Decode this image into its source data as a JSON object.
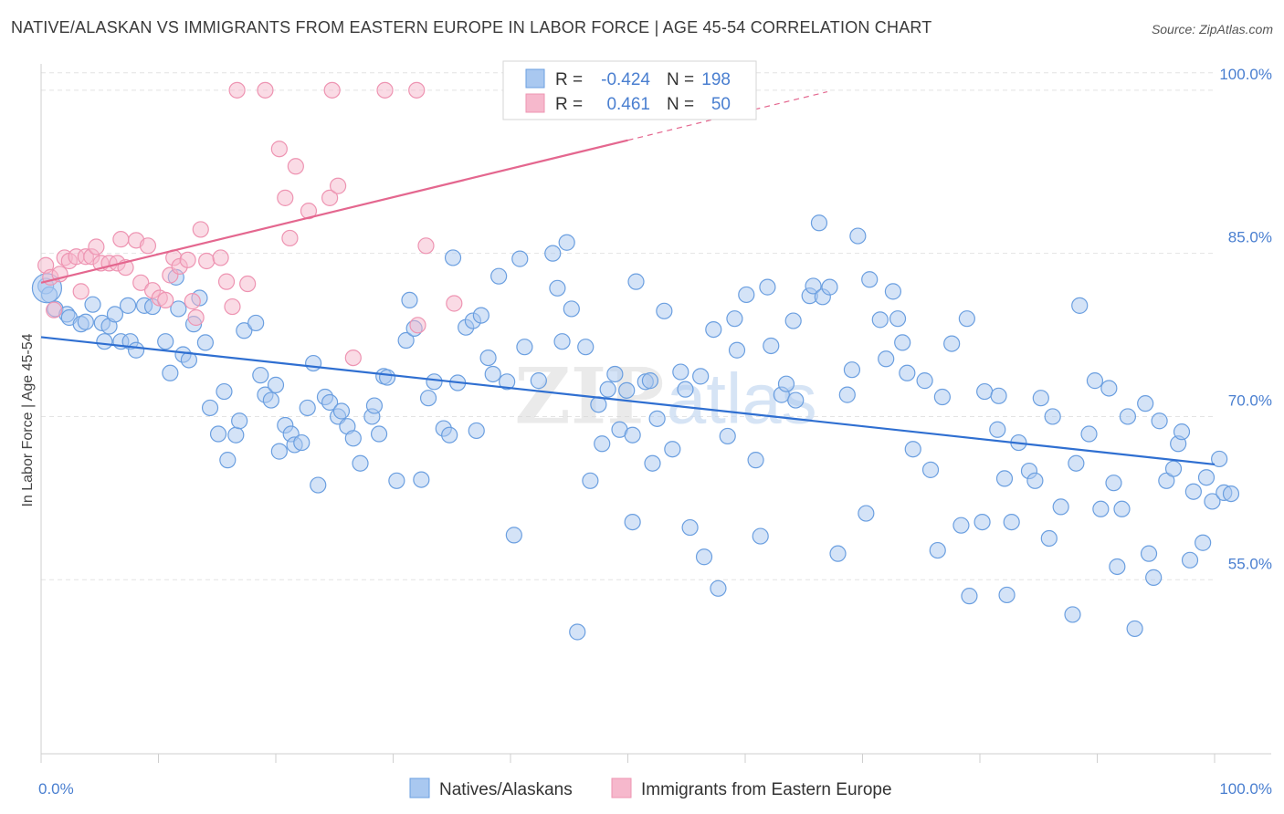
{
  "title": "NATIVE/ALASKAN VS IMMIGRANTS FROM EASTERN EUROPE IN LABOR FORCE | AGE 45-54 CORRELATION CHART",
  "source": "Source: ZipAtlas.com",
  "watermark": {
    "zip": "ZIP",
    "atlas": "atlas"
  },
  "colors": {
    "blue_fill": "#a9c8f0",
    "blue_stroke": "#6b9fe0",
    "blue_line": "#2f6fd1",
    "pink_fill": "#f6b8cc",
    "pink_stroke": "#ee94b2",
    "pink_line": "#e4678f",
    "label_blue": "#4a7fd0",
    "grid": "#e3e3e3"
  },
  "stats_legend": [
    {
      "r_label": "R =",
      "r_value": "-0.424",
      "n_label": "N =",
      "n_value": "198"
    },
    {
      "r_label": "R =",
      "r_value": "0.461",
      "n_label": "N =",
      "n_value": "50"
    }
  ],
  "chart_data": {
    "type": "scatter",
    "title": "NATIVE/ALASKAN VS IMMIGRANTS FROM EASTERN EUROPE IN LABOR FORCE | AGE 45-54 CORRELATION CHART",
    "xlabel": "",
    "ylabel": "In Labor Force | Age 45-54",
    "xlim": [
      0,
      100
    ],
    "ylim": [
      39,
      102
    ],
    "x_tick_labels": [
      "0.0%",
      "100.0%"
    ],
    "y_ticks": [
      55,
      70,
      85,
      100
    ],
    "y_tick_labels": [
      "55.0%",
      "70.0%",
      "85.0%",
      "100.0%"
    ],
    "grid": true,
    "legend_position": "bottom-center",
    "series": [
      {
        "name": "Natives/Alaskans",
        "color": "#6b9fe0",
        "trend": {
          "x": [
            0,
            100
          ],
          "y": [
            77.3,
            65.6
          ]
        },
        "points": [
          [
            0.4,
            82
          ],
          [
            0.7,
            81.2
          ],
          [
            1.2,
            79.9
          ],
          [
            2.2,
            79.4
          ],
          [
            2.4,
            79.1
          ],
          [
            3.4,
            78.5
          ],
          [
            3.8,
            78.7
          ],
          [
            4.4,
            80.3
          ],
          [
            5.2,
            78.6
          ],
          [
            5.8,
            78.3
          ],
          [
            6.3,
            79.4
          ],
          [
            5.4,
            76.9
          ],
          [
            6.8,
            76.9
          ],
          [
            7.6,
            76.9
          ],
          [
            8.1,
            76.1
          ],
          [
            7.4,
            80.2
          ],
          [
            8.8,
            80.2
          ],
          [
            9.5,
            80.1
          ],
          [
            10.6,
            76.9
          ],
          [
            11,
            74
          ],
          [
            11.5,
            82.8
          ],
          [
            11.7,
            79.9
          ],
          [
            12.1,
            75.7
          ],
          [
            12.6,
            75.2
          ],
          [
            13,
            78.5
          ],
          [
            13.5,
            80.9
          ],
          [
            14,
            76.8
          ],
          [
            14.4,
            70.8
          ],
          [
            15.1,
            68.4
          ],
          [
            15.6,
            72.3
          ],
          [
            15.9,
            66
          ],
          [
            16.6,
            68.3
          ],
          [
            16.9,
            69.6
          ],
          [
            17.3,
            77.9
          ],
          [
            18.3,
            78.6
          ],
          [
            18.7,
            73.8
          ],
          [
            19.1,
            72
          ],
          [
            19.6,
            71.5
          ],
          [
            20,
            72.9
          ],
          [
            20.3,
            66.8
          ],
          [
            20.8,
            69.2
          ],
          [
            21.3,
            68.4
          ],
          [
            21.6,
            67.4
          ],
          [
            22.2,
            67.6
          ],
          [
            22.7,
            70.8
          ],
          [
            23.2,
            74.9
          ],
          [
            23.6,
            63.7
          ],
          [
            24.2,
            71.8
          ],
          [
            24.6,
            71.3
          ],
          [
            25.3,
            70
          ],
          [
            25.6,
            70.5
          ],
          [
            26.1,
            69.1
          ],
          [
            26.6,
            68
          ],
          [
            27.2,
            65.7
          ],
          [
            28.2,
            70
          ],
          [
            28.4,
            71
          ],
          [
            28.8,
            68.4
          ],
          [
            29.2,
            73.7
          ],
          [
            29.5,
            73.6
          ],
          [
            30.3,
            64.1
          ],
          [
            31.1,
            77
          ],
          [
            31.4,
            80.7
          ],
          [
            31.8,
            78.1
          ],
          [
            32.4,
            64.2
          ],
          [
            33,
            71.7
          ],
          [
            33.5,
            73.2
          ],
          [
            34.3,
            68.9
          ],
          [
            34.8,
            68.3
          ],
          [
            35.1,
            84.6
          ],
          [
            35.5,
            73.1
          ],
          [
            36.2,
            78.2
          ],
          [
            36.8,
            78.8
          ],
          [
            37.1,
            68.7
          ],
          [
            37.5,
            79.3
          ],
          [
            38.1,
            75.4
          ],
          [
            38.5,
            73.9
          ],
          [
            39,
            82.9
          ],
          [
            39.7,
            73.2
          ],
          [
            40.3,
            59.1
          ],
          [
            40.8,
            84.5
          ],
          [
            41.2,
            76.4
          ],
          [
            42.4,
            73.3
          ],
          [
            43.6,
            85
          ],
          [
            44,
            81.8
          ],
          [
            44.4,
            76.9
          ],
          [
            44.8,
            86
          ],
          [
            45.2,
            79.9
          ],
          [
            45.7,
            50.2
          ],
          [
            46.4,
            76.4
          ],
          [
            46.8,
            64.1
          ],
          [
            47.5,
            71.1
          ],
          [
            47.8,
            67.5
          ],
          [
            48.3,
            72.5
          ],
          [
            48.9,
            73.9
          ],
          [
            49.3,
            68.8
          ],
          [
            49.9,
            72.4
          ],
          [
            50.4,
            68.3
          ],
          [
            50.4,
            60.3
          ],
          [
            50.7,
            82.4
          ],
          [
            51.5,
            73.2
          ],
          [
            51.9,
            73.3
          ],
          [
            52.1,
            65.7
          ],
          [
            52.5,
            69.8
          ],
          [
            53.1,
            79.7
          ],
          [
            53.8,
            67
          ],
          [
            54.5,
            74.1
          ],
          [
            54.9,
            72.5
          ],
          [
            55.3,
            59.8
          ],
          [
            56.2,
            73.7
          ],
          [
            56.5,
            57.1
          ],
          [
            57.3,
            78
          ],
          [
            57.7,
            54.2
          ],
          [
            58.5,
            68.2
          ],
          [
            59.1,
            79
          ],
          [
            59.3,
            76.1
          ],
          [
            60.1,
            81.2
          ],
          [
            60.9,
            66
          ],
          [
            61.3,
            59
          ],
          [
            61.9,
            81.9
          ],
          [
            62.2,
            76.5
          ],
          [
            63.1,
            72
          ],
          [
            63.5,
            73
          ],
          [
            64.1,
            78.8
          ],
          [
            64.3,
            71.5
          ],
          [
            65.5,
            81.1
          ],
          [
            65.8,
            82
          ],
          [
            66.3,
            87.8
          ],
          [
            66.6,
            81
          ],
          [
            67.2,
            81.9
          ],
          [
            67.9,
            57.4
          ],
          [
            68.7,
            72
          ],
          [
            69.1,
            74.3
          ],
          [
            69.6,
            86.6
          ],
          [
            70.3,
            61.1
          ],
          [
            70.6,
            82.6
          ],
          [
            71.5,
            78.9
          ],
          [
            72,
            75.3
          ],
          [
            72.6,
            81.5
          ],
          [
            73,
            79
          ],
          [
            73.4,
            76.8
          ],
          [
            73.8,
            74
          ],
          [
            74.3,
            67
          ],
          [
            75.3,
            73.3
          ],
          [
            75.8,
            65.1
          ],
          [
            76.4,
            57.7
          ],
          [
            76.8,
            71.8
          ],
          [
            77.6,
            76.7
          ],
          [
            78.4,
            60
          ],
          [
            78.9,
            79
          ],
          [
            79.1,
            53.5
          ],
          [
            80.2,
            60.3
          ],
          [
            80.4,
            72.3
          ],
          [
            81.5,
            68.8
          ],
          [
            81.6,
            71.9
          ],
          [
            82.1,
            64.3
          ],
          [
            82.3,
            53.6
          ],
          [
            82.7,
            60.3
          ],
          [
            83.3,
            67.6
          ],
          [
            84.2,
            65
          ],
          [
            84.7,
            64.1
          ],
          [
            85.2,
            71.7
          ],
          [
            85.9,
            58.8
          ],
          [
            86.2,
            70
          ],
          [
            86.9,
            61.7
          ],
          [
            87.9,
            51.8
          ],
          [
            88.2,
            65.7
          ],
          [
            88.5,
            80.2
          ],
          [
            89.3,
            68.4
          ],
          [
            89.8,
            73.3
          ],
          [
            90.3,
            61.5
          ],
          [
            91,
            72.6
          ],
          [
            91.4,
            63.9
          ],
          [
            91.7,
            56.2
          ],
          [
            92.1,
            61.5
          ],
          [
            92.6,
            70
          ],
          [
            93.2,
            50.5
          ],
          [
            94.1,
            71.2
          ],
          [
            94.4,
            57.4
          ],
          [
            94.8,
            55.2
          ],
          [
            95.3,
            69.6
          ],
          [
            95.9,
            64.1
          ],
          [
            96.5,
            65.2
          ],
          [
            96.9,
            67.5
          ],
          [
            97.2,
            68.6
          ],
          [
            97.9,
            56.8
          ],
          [
            98.2,
            63.1
          ],
          [
            99,
            58.4
          ],
          [
            99.3,
            64.4
          ],
          [
            99.8,
            62.2
          ],
          [
            100.4,
            66.1
          ],
          [
            100.8,
            63
          ],
          [
            101.4,
            62.9
          ]
        ]
      },
      {
        "name": "Immigrants from Eastern Europe",
        "color": "#ee94b2",
        "trend": {
          "x": [
            0,
            50
          ],
          "y": [
            82.3,
            95.4
          ]
        },
        "points": [
          [
            0.4,
            83.9
          ],
          [
            0.8,
            82.8
          ],
          [
            1.1,
            79.8
          ],
          [
            1.6,
            83.1
          ],
          [
            2,
            84.6
          ],
          [
            2.4,
            84.3
          ],
          [
            3,
            84.7
          ],
          [
            3.4,
            81.5
          ],
          [
            3.8,
            84.7
          ],
          [
            4.3,
            84.7
          ],
          [
            4.7,
            85.6
          ],
          [
            5.1,
            84.1
          ],
          [
            5.8,
            84.1
          ],
          [
            6.5,
            84.1
          ],
          [
            6.8,
            86.3
          ],
          [
            7.2,
            83.7
          ],
          [
            8.1,
            86.2
          ],
          [
            8.5,
            82.3
          ],
          [
            9.1,
            85.7
          ],
          [
            9.5,
            81.6
          ],
          [
            10.1,
            80.9
          ],
          [
            10.6,
            80.7
          ],
          [
            11,
            83
          ],
          [
            11.3,
            84.6
          ],
          [
            11.8,
            83.8
          ],
          [
            12.5,
            84.4
          ],
          [
            12.9,
            80.6
          ],
          [
            13.2,
            79.1
          ],
          [
            13.6,
            87.2
          ],
          [
            14.1,
            84.3
          ],
          [
            15.3,
            84.6
          ],
          [
            15.8,
            82.4
          ],
          [
            16.3,
            80.1
          ],
          [
            16.7,
            100
          ],
          [
            17.6,
            82.2
          ],
          [
            19.1,
            100
          ],
          [
            20.3,
            94.6
          ],
          [
            20.8,
            90.1
          ],
          [
            21.2,
            86.4
          ],
          [
            21.7,
            93
          ],
          [
            22.8,
            88.9
          ],
          [
            24.8,
            100
          ],
          [
            24.6,
            90.1
          ],
          [
            25.3,
            91.2
          ],
          [
            26.6,
            75.4
          ],
          [
            29.3,
            100
          ],
          [
            32,
            100
          ],
          [
            32.1,
            78.4
          ],
          [
            32.8,
            85.7
          ],
          [
            35.2,
            80.4
          ]
        ]
      }
    ]
  },
  "bottom_legend": [
    "Natives/Alaskans",
    "Immigrants from Eastern Europe"
  ]
}
